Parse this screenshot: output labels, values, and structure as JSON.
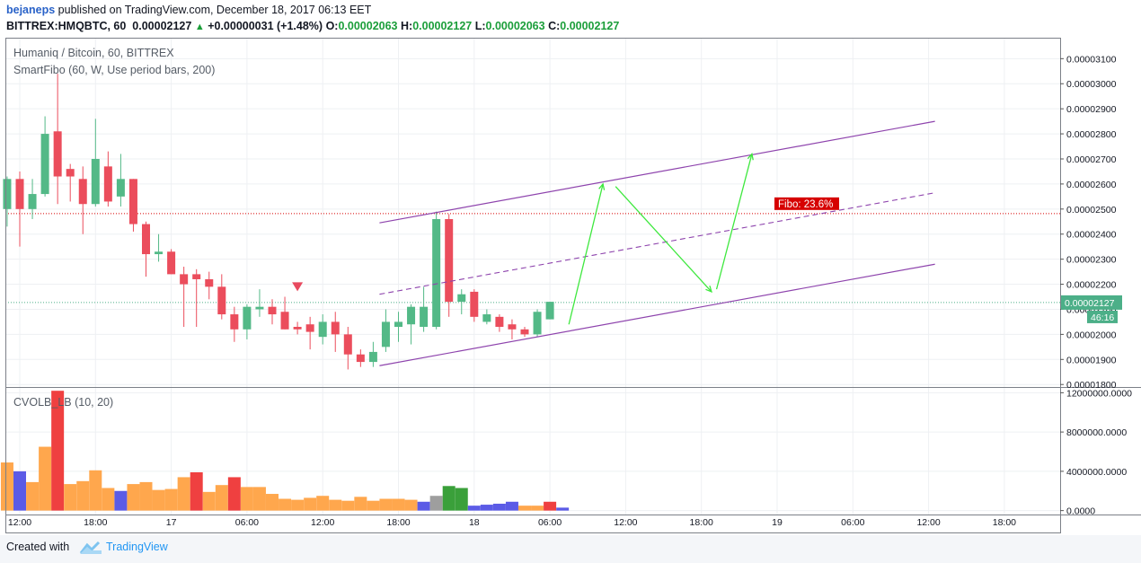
{
  "header": {
    "author": "bejaneps",
    "published": " published on TradingView.com, December 18, 2017 06:13 EET",
    "symbol": "BITTREX:HMQBTC, 60",
    "last": "0.00002127",
    "change": "+0.00000031 (+1.48%)",
    "o_label": "O:",
    "o_value": "0.00002063",
    "h_label": "H:",
    "h_value": "0.00002127",
    "l_label": "L:",
    "l_value": "0.00002063",
    "c_label": "C:",
    "c_value": "0.00002127"
  },
  "legend": {
    "title": "Humaniq / Bitcoin, 60, BITTREX",
    "indicator": "SmartFibo (60, W, Use period bars, 200)",
    "volume_indicator": "CVOLB_LB (10, 20)"
  },
  "footer": {
    "created_with": "Created with",
    "brand": "TradingView"
  },
  "colors": {
    "up": "#53b987",
    "down": "#eb4d5c",
    "channel": "#8e44ad",
    "arrow": "#3ee83e",
    "fibo": "#d60000",
    "last_price": "#4caf88",
    "vol_orange": "#ffa74d",
    "vol_blue": "#5b5be6",
    "vol_red": "#ef4040",
    "vol_green": "#3aa03a",
    "vol_gray": "#9e9e9e"
  },
  "chart_data": [
    {
      "type": "candlestick",
      "title": "Humaniq / Bitcoin, 60, BITTREX",
      "x_tick_labels": [
        "12:00",
        "18:00",
        "17",
        "06:00",
        "12:00",
        "18:00",
        "18",
        "06:00",
        "12:00",
        "18:00",
        "19",
        "06:00",
        "12:00",
        "18:00"
      ],
      "x_tick_hours": [
        0,
        6,
        12,
        18,
        24,
        30,
        36,
        42,
        48,
        54,
        60,
        66,
        72,
        78
      ],
      "y_tick_labels": [
        "0.00003100",
        "0.00003000",
        "0.00002900",
        "0.00002800",
        "0.00002700",
        "0.00002600",
        "0.00002500",
        "0.00002400",
        "0.00002300",
        "0.00002200",
        "0.00002100",
        "0.00002000",
        "0.00001900",
        "0.00001800"
      ],
      "ylim": [
        1.79e-05,
        3.18e-05
      ],
      "last_price_label": "0.00002127",
      "countdown_label": "46:16",
      "fibo_label": "Fibo: 23.6%",
      "fibo_level": 2.482e-05,
      "last_price": 2.127e-05,
      "candles": [
        {
          "t": -1,
          "o": 2.5e-05,
          "h": 2.63e-05,
          "l": 2.43e-05,
          "c": 2.62e-05
        },
        {
          "t": 0,
          "o": 2.62e-05,
          "h": 2.65e-05,
          "l": 2.35e-05,
          "c": 2.5e-05
        },
        {
          "t": 1,
          "o": 2.5e-05,
          "h": 2.62e-05,
          "l": 2.46e-05,
          "c": 2.56e-05
        },
        {
          "t": 2,
          "o": 2.56e-05,
          "h": 2.87e-05,
          "l": 2.55e-05,
          "c": 2.8e-05
        },
        {
          "t": 3,
          "o": 2.81e-05,
          "h": 3.04e-05,
          "l": 2.52e-05,
          "c": 2.63e-05
        },
        {
          "t": 4,
          "o": 2.66e-05,
          "h": 2.68e-05,
          "l": 2.53e-05,
          "c": 2.63e-05
        },
        {
          "t": 5,
          "o": 2.62e-05,
          "h": 2.67e-05,
          "l": 2.4e-05,
          "c": 2.52e-05
        },
        {
          "t": 6,
          "o": 2.52e-05,
          "h": 2.86e-05,
          "l": 2.51e-05,
          "c": 2.7e-05
        },
        {
          "t": 7,
          "o": 2.67e-05,
          "h": 2.73e-05,
          "l": 2.51e-05,
          "c": 2.53e-05
        },
        {
          "t": 8,
          "o": 2.55e-05,
          "h": 2.72e-05,
          "l": 2.51e-05,
          "c": 2.62e-05
        },
        {
          "t": 9,
          "o": 2.62e-05,
          "h": 2.62e-05,
          "l": 2.41e-05,
          "c": 2.44e-05
        },
        {
          "t": 10,
          "o": 2.44e-05,
          "h": 2.45e-05,
          "l": 2.23e-05,
          "c": 2.32e-05
        },
        {
          "t": 11,
          "o": 2.32e-05,
          "h": 2.4e-05,
          "l": 2.29e-05,
          "c": 2.33e-05
        },
        {
          "t": 12,
          "o": 2.33e-05,
          "h": 2.34e-05,
          "l": 2.24e-05,
          "c": 2.24e-05
        },
        {
          "t": 13,
          "o": 2.24e-05,
          "h": 2.27e-05,
          "l": 2.03e-05,
          "c": 2.2e-05
        },
        {
          "t": 14,
          "o": 2.24e-05,
          "h": 2.26e-05,
          "l": 2.03e-05,
          "c": 2.22e-05
        },
        {
          "t": 15,
          "o": 2.22e-05,
          "h": 2.25e-05,
          "l": 2.14e-05,
          "c": 2.19e-05
        },
        {
          "t": 16,
          "o": 2.19e-05,
          "h": 2.24e-05,
          "l": 2.06e-05,
          "c": 2.08e-05
        },
        {
          "t": 17,
          "o": 2.08e-05,
          "h": 2.11e-05,
          "l": 1.97e-05,
          "c": 2.02e-05
        },
        {
          "t": 18,
          "o": 2.02e-05,
          "h": 2.12e-05,
          "l": 1.98e-05,
          "c": 2.11e-05
        },
        {
          "t": 19,
          "o": 2.1e-05,
          "h": 2.18e-05,
          "l": 2.07e-05,
          "c": 2.11e-05
        },
        {
          "t": 20,
          "o": 2.11e-05,
          "h": 2.14e-05,
          "l": 2.04e-05,
          "c": 2.08e-05
        },
        {
          "t": 21,
          "o": 2.09e-05,
          "h": 2.15e-05,
          "l": 2.02e-05,
          "c": 2.02e-05
        },
        {
          "t": 22,
          "o": 2.03e-05,
          "h": 2.05e-05,
          "l": 2e-05,
          "c": 2.02e-05
        },
        {
          "t": 23,
          "o": 2.04e-05,
          "h": 2.07e-05,
          "l": 1.94e-05,
          "c": 2.01e-05
        },
        {
          "t": 24,
          "o": 1.99e-05,
          "h": 2.08e-05,
          "l": 1.96e-05,
          "c": 2.05e-05
        },
        {
          "t": 25,
          "o": 2.05e-05,
          "h": 2.09e-05,
          "l": 1.93e-05,
          "c": 2e-05
        },
        {
          "t": 26,
          "o": 2e-05,
          "h": 2.03e-05,
          "l": 1.86e-05,
          "c": 1.92e-05
        },
        {
          "t": 27,
          "o": 1.92e-05,
          "h": 1.94e-05,
          "l": 1.87e-05,
          "c": 1.89e-05
        },
        {
          "t": 28,
          "o": 1.89e-05,
          "h": 1.97e-05,
          "l": 1.87e-05,
          "c": 1.93e-05
        },
        {
          "t": 29,
          "o": 1.95e-05,
          "h": 2.1e-05,
          "l": 1.93e-05,
          "c": 2.05e-05
        },
        {
          "t": 30,
          "o": 2.03e-05,
          "h": 2.09e-05,
          "l": 1.97e-05,
          "c": 2.05e-05
        },
        {
          "t": 31,
          "o": 2.04e-05,
          "h": 2.12e-05,
          "l": 1.96e-05,
          "c": 2.11e-05
        },
        {
          "t": 32,
          "o": 2.03e-05,
          "h": 2.19e-05,
          "l": 2.01e-05,
          "c": 2.11e-05
        },
        {
          "t": 33,
          "o": 2.03e-05,
          "h": 2.49e-05,
          "l": 2.02e-05,
          "c": 2.46e-05
        },
        {
          "t": 34,
          "o": 2.46e-05,
          "h": 2.48e-05,
          "l": 2.07e-05,
          "c": 2.13e-05
        },
        {
          "t": 35,
          "o": 2.13e-05,
          "h": 2.18e-05,
          "l": 2.08e-05,
          "c": 2.16e-05
        },
        {
          "t": 36,
          "o": 2.17e-05,
          "h": 2.18e-05,
          "l": 2.05e-05,
          "c": 2.07e-05
        },
        {
          "t": 37,
          "o": 2.05e-05,
          "h": 2.1e-05,
          "l": 2.04e-05,
          "c": 2.08e-05
        },
        {
          "t": 38,
          "o": 2.07e-05,
          "h": 2.08e-05,
          "l": 2.01e-05,
          "c": 2.03e-05
        },
        {
          "t": 39,
          "o": 2.04e-05,
          "h": 2.06e-05,
          "l": 1.98e-05,
          "c": 2.02e-05
        },
        {
          "t": 40,
          "o": 2.02e-05,
          "h": 2.03e-05,
          "l": 1.99e-05,
          "c": 2e-05
        },
        {
          "t": 41,
          "o": 2e-05,
          "h": 2.1e-05,
          "l": 1.99e-05,
          "c": 2.09e-05
        },
        {
          "t": 42,
          "o": 2.06e-05,
          "h": 2.13e-05,
          "l": 2.06e-05,
          "c": 2.13e-05
        }
      ],
      "channel_upper": [
        {
          "t": 28.5,
          "y": 2.445e-05
        },
        {
          "t": 72.5,
          "y": 2.85e-05
        }
      ],
      "channel_middle": [
        {
          "t": 28.5,
          "y": 2.16e-05
        },
        {
          "t": 72.5,
          "y": 2.565e-05
        }
      ],
      "channel_lower": [
        {
          "t": 28.5,
          "y": 1.875e-05
        },
        {
          "t": 72.5,
          "y": 2.28e-05
        }
      ],
      "projection": [
        {
          "t": 43.5,
          "y": 2.04e-05
        },
        {
          "t": 46.2,
          "y": 2.6e-05
        },
        {
          "t": 47.2,
          "y": 2.59e-05
        },
        {
          "t": 54.8,
          "y": 2.17e-05
        },
        {
          "t": 55.2,
          "y": 2.18e-05
        },
        {
          "t": 58.0,
          "y": 2.72e-05
        }
      ],
      "signal_marker": {
        "t": 22,
        "y": 2.19e-05
      }
    },
    {
      "type": "bar",
      "title": "CVOLB_LB (10, 20)",
      "y_tick_labels": [
        "12000000.0000",
        "8000000.0000",
        "4000000.0000",
        "0.0000"
      ],
      "ylim": [
        -400000,
        12400000
      ],
      "bars": [
        {
          "t": -1,
          "v": 4900000,
          "c": "orange"
        },
        {
          "t": 0,
          "v": 4000000,
          "c": "blue"
        },
        {
          "t": 1,
          "v": 2900000,
          "c": "orange"
        },
        {
          "t": 2,
          "v": 6500000,
          "c": "orange"
        },
        {
          "t": 3,
          "v": 12200000,
          "c": "red"
        },
        {
          "t": 4,
          "v": 2700000,
          "c": "orange"
        },
        {
          "t": 5,
          "v": 3000000,
          "c": "orange"
        },
        {
          "t": 6,
          "v": 4100000,
          "c": "orange"
        },
        {
          "t": 7,
          "v": 2300000,
          "c": "orange"
        },
        {
          "t": 8,
          "v": 2000000,
          "c": "blue"
        },
        {
          "t": 9,
          "v": 2700000,
          "c": "orange"
        },
        {
          "t": 10,
          "v": 2900000,
          "c": "orange"
        },
        {
          "t": 11,
          "v": 2100000,
          "c": "orange"
        },
        {
          "t": 12,
          "v": 2200000,
          "c": "orange"
        },
        {
          "t": 13,
          "v": 3400000,
          "c": "orange"
        },
        {
          "t": 14,
          "v": 3900000,
          "c": "red"
        },
        {
          "t": 15,
          "v": 1900000,
          "c": "orange"
        },
        {
          "t": 16,
          "v": 2600000,
          "c": "orange"
        },
        {
          "t": 17,
          "v": 3400000,
          "c": "red"
        },
        {
          "t": 18,
          "v": 2400000,
          "c": "orange"
        },
        {
          "t": 19,
          "v": 2400000,
          "c": "orange"
        },
        {
          "t": 20,
          "v": 1700000,
          "c": "orange"
        },
        {
          "t": 21,
          "v": 1200000,
          "c": "orange"
        },
        {
          "t": 22,
          "v": 1100000,
          "c": "orange"
        },
        {
          "t": 23,
          "v": 1300000,
          "c": "orange"
        },
        {
          "t": 24,
          "v": 1500000,
          "c": "orange"
        },
        {
          "t": 25,
          "v": 1100000,
          "c": "orange"
        },
        {
          "t": 26,
          "v": 1000000,
          "c": "orange"
        },
        {
          "t": 27,
          "v": 1400000,
          "c": "orange"
        },
        {
          "t": 28,
          "v": 1000000,
          "c": "orange"
        },
        {
          "t": 29,
          "v": 1200000,
          "c": "orange"
        },
        {
          "t": 30,
          "v": 1200000,
          "c": "orange"
        },
        {
          "t": 31,
          "v": 1100000,
          "c": "orange"
        },
        {
          "t": 32,
          "v": 900000,
          "c": "blue"
        },
        {
          "t": 33,
          "v": 1500000,
          "c": "gray"
        },
        {
          "t": 34,
          "v": 2500000,
          "c": "green"
        },
        {
          "t": 35,
          "v": 2300000,
          "c": "green"
        },
        {
          "t": 36,
          "v": 500000,
          "c": "blue"
        },
        {
          "t": 37,
          "v": 600000,
          "c": "blue"
        },
        {
          "t": 38,
          "v": 700000,
          "c": "blue"
        },
        {
          "t": 39,
          "v": 900000,
          "c": "blue"
        },
        {
          "t": 40,
          "v": 500000,
          "c": "orange"
        },
        {
          "t": 41,
          "v": 500000,
          "c": "orange"
        },
        {
          "t": 42,
          "v": 900000,
          "c": "red"
        },
        {
          "t": 43,
          "v": 300000,
          "c": "blue"
        }
      ]
    }
  ]
}
